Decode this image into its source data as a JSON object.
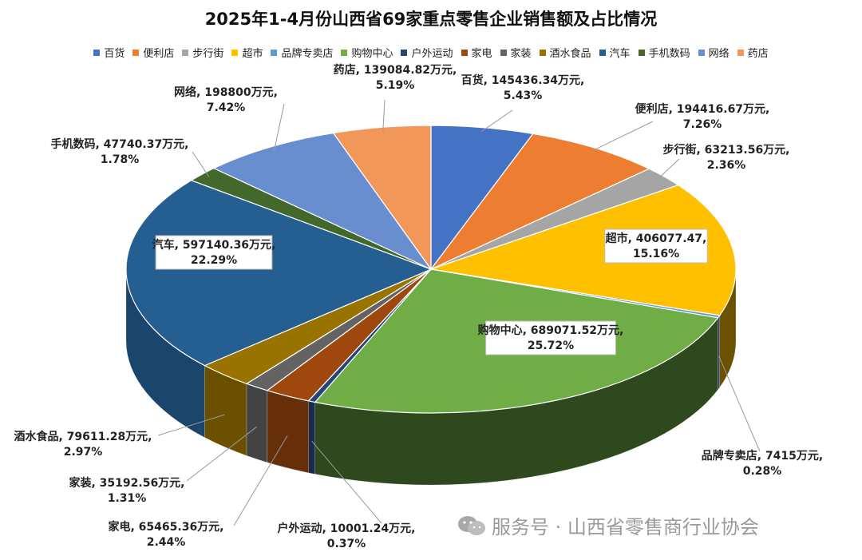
{
  "chart_data": {
    "type": "pie",
    "title": "2025年1-4月份山西省69家重点零售企业销售额及占比情况",
    "series": [
      {
        "name": "百货",
        "value": 145436.34,
        "value_text": "145436.34万元",
        "percent": "5.43%",
        "color": "#4472C4"
      },
      {
        "name": "便利店",
        "value": 194416.67,
        "value_text": "194416.67万元",
        "percent": "7.26%",
        "color": "#ED7D31"
      },
      {
        "name": "步行街",
        "value": 63213.56,
        "value_text": "63213.56万元",
        "percent": "2.36%",
        "color": "#A5A5A5"
      },
      {
        "name": "超市",
        "value": 406077.47,
        "value_text": "406077.47",
        "percent": "15.16%",
        "color": "#FFC000"
      },
      {
        "name": "品牌专卖店",
        "value": 7415,
        "value_text": "7415万元",
        "percent": "0.28%",
        "color": "#5B9BD5"
      },
      {
        "name": "购物中心",
        "value": 689071.52,
        "value_text": "689071.52万元",
        "percent": "25.72%",
        "color": "#70AD47"
      },
      {
        "name": "户外运动",
        "value": 10001.24,
        "value_text": "10001.24万元",
        "percent": "0.37%",
        "color": "#264478"
      },
      {
        "name": "家电",
        "value": 65465.36,
        "value_text": "65465.36万元",
        "percent": "2.44%",
        "color": "#9E480E"
      },
      {
        "name": "家装",
        "value": 35192.56,
        "value_text": "35192.56万元",
        "percent": "1.31%",
        "color": "#636363"
      },
      {
        "name": "酒水食品",
        "value": 79611.28,
        "value_text": "79611.28万元",
        "percent": "2.97%",
        "color": "#997300"
      },
      {
        "name": "汽车",
        "value": 597140.36,
        "value_text": "597140.36万元",
        "percent": "22.29%",
        "color": "#255E91"
      },
      {
        "name": "手机数码",
        "value": 47740.37,
        "value_text": "47740.37万元",
        "percent": "1.78%",
        "color": "#43682B"
      },
      {
        "name": "网络",
        "value": 198800,
        "value_text": "198800万元",
        "percent": "7.42%",
        "color": "#698ED0"
      },
      {
        "name": "药店",
        "value": 139084.82,
        "value_text": "139084.82万元",
        "percent": "5.19%",
        "color": "#F1975A"
      }
    ],
    "legend_position": "top",
    "style": "3d-pie"
  },
  "watermark": {
    "icon": "wechat-icon",
    "text": "服务号 · 山西省零售商行业协会"
  }
}
